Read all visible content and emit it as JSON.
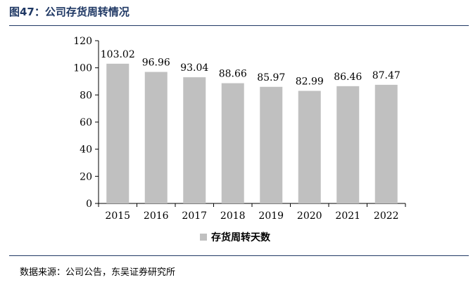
{
  "header": {
    "title": "图47：公司存货周转情况"
  },
  "footer": {
    "source": "数据来源：公司公告，东吴证券研究所"
  },
  "colors": {
    "bar": "#c0c0c0",
    "rule": "#1f3864"
  },
  "chart_data": {
    "type": "bar",
    "categories": [
      "2015",
      "2016",
      "2017",
      "2018",
      "2019",
      "2020",
      "2021",
      "2022"
    ],
    "series": [
      {
        "name": "存货周转天数",
        "values": [
          103.02,
          96.96,
          93.04,
          88.66,
          85.97,
          82.99,
          86.46,
          87.47
        ]
      }
    ],
    "data_labels": [
      "103.02",
      "96.96",
      "93.04",
      "88.66",
      "85.97",
      "82.99",
      "86.46",
      "87.47"
    ],
    "ylim": [
      0,
      120
    ],
    "yticks": [
      0,
      20,
      40,
      60,
      80,
      100,
      120
    ],
    "ytick_labels": [
      "0",
      "20",
      "40",
      "60",
      "80",
      "100",
      "120"
    ],
    "grid": false,
    "legend_position": "bottom-center"
  }
}
